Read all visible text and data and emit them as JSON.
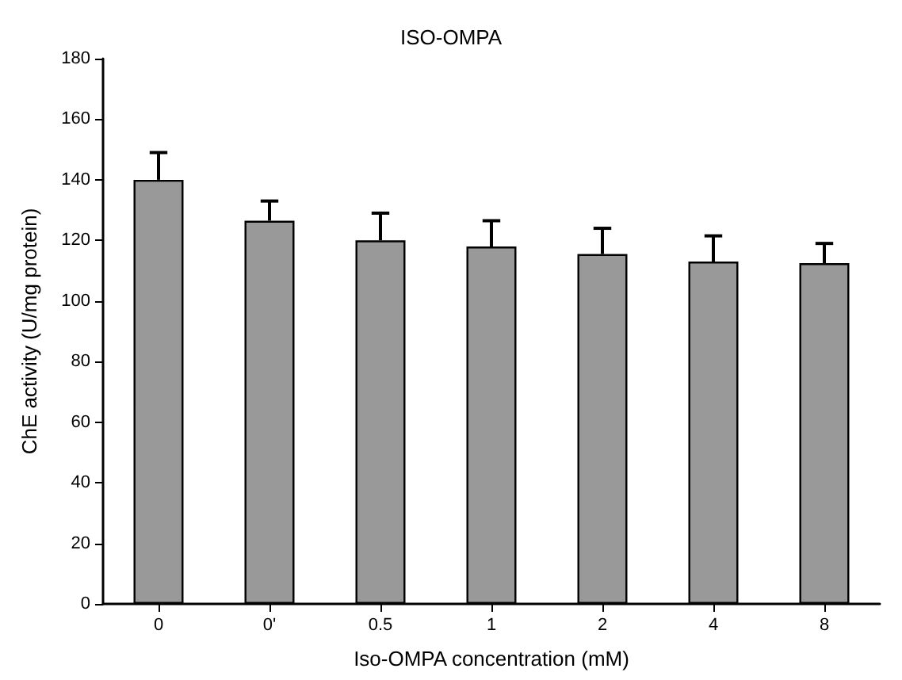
{
  "chart_data": {
    "type": "bar",
    "title": "ISO-OMPA",
    "xlabel": "Iso-OMPA concentration (mM)",
    "ylabel": "ChE activity (U/mg protein)",
    "categories": [
      "0",
      "0'",
      "0.5",
      "1",
      "2",
      "4",
      "8"
    ],
    "values": [
      140,
      126.5,
      120,
      118,
      115.5,
      113,
      112.5
    ],
    "errors": [
      [
        140,
        149
      ],
      [
        126.5,
        133
      ],
      [
        120,
        129
      ],
      [
        118,
        126.5
      ],
      [
        115.5,
        124
      ],
      [
        113,
        121.5
      ],
      [
        112.5,
        119
      ]
    ],
    "color": "#999999",
    "ylim": [
      0,
      180
    ],
    "yticks": [
      0,
      20,
      40,
      60,
      80,
      100,
      120,
      140,
      160,
      180
    ],
    "grid": false
  }
}
